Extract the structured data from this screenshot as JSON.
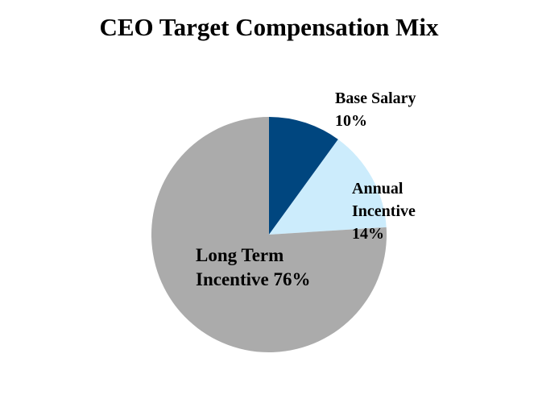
{
  "chart_data": {
    "type": "pie",
    "title": "CEO Target Compensation Mix",
    "start_angle_deg": 0,
    "direction": "clockwise",
    "slices": [
      {
        "name": "Base Salary",
        "value": 10,
        "label_line1": "Base Salary",
        "label_line2": "10%",
        "color": "#00467F"
      },
      {
        "name": "Annual Incentive",
        "value": 14,
        "label_line1": "Annual",
        "label_line2": "Incentive",
        "label_line3": "14%",
        "color": "#CCECFC"
      },
      {
        "name": "Long Term Incentive",
        "value": 76,
        "label_line1": "Long Term",
        "label_line2": "Incentive 76%",
        "color": "#ABABAB"
      }
    ],
    "legend": "none (data labels)",
    "center": [
      334,
      291
    ],
    "radius": 146
  }
}
